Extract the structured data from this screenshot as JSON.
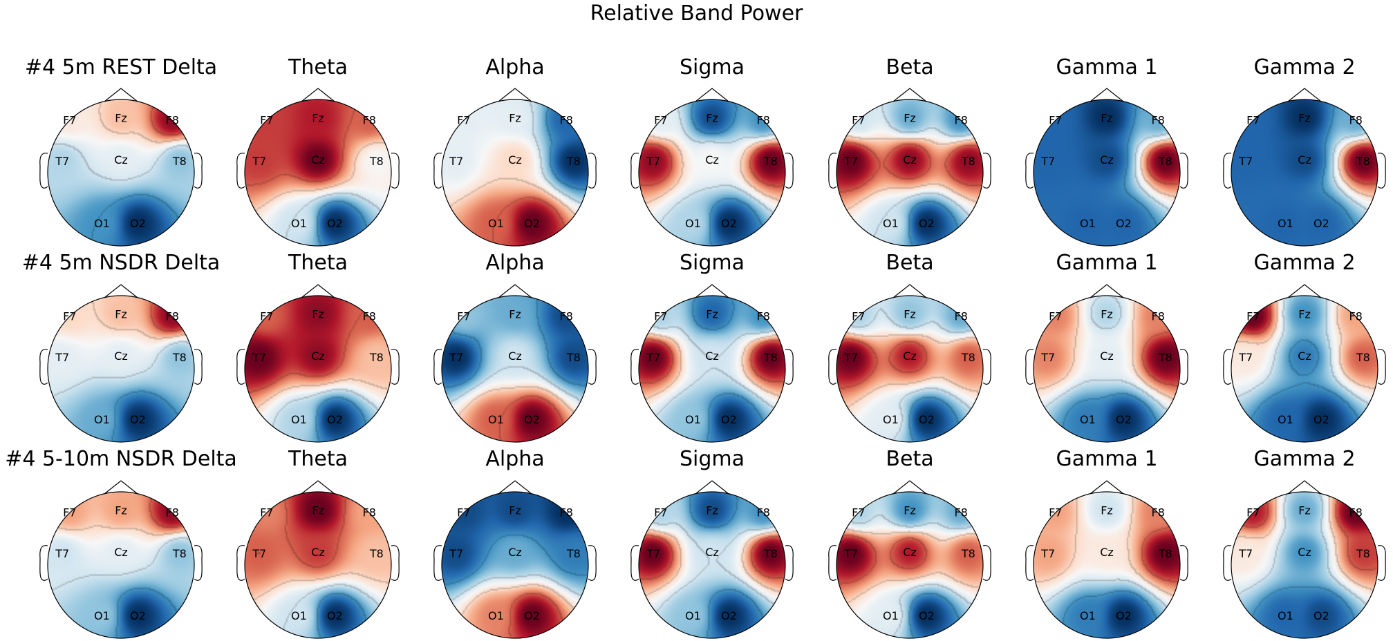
{
  "title": "Relative Band Power",
  "chart_data": {
    "type": "heatmap",
    "kind": "EEG scalp topomap",
    "colormap": "RdBu_r",
    "title": "Relative Band Power",
    "rows": [
      "#4 5m REST",
      "#4 5m NSDR",
      "#4 5-10m NSDR"
    ],
    "bands": [
      "Delta",
      "Theta",
      "Alpha",
      "Sigma",
      "Beta",
      "Gamma 1",
      "Gamma 2"
    ],
    "channels": [
      "F7",
      "Fz",
      "F8",
      "T7",
      "Cz",
      "T8",
      "O1",
      "O2"
    ],
    "value_scale": "relative within each map, -1 (blue) to +1 (red)",
    "maps": [
      [
        [
          0.1,
          0.3,
          0.9,
          -0.3,
          -0.1,
          -0.4,
          -0.6,
          -1.0
        ],
        [
          0.7,
          0.8,
          0.6,
          0.7,
          1.0,
          0.0,
          -0.2,
          -1.0
        ],
        [
          -0.1,
          -0.1,
          -0.8,
          -0.1,
          0.2,
          -1.0,
          0.6,
          1.0
        ],
        [
          -0.1,
          -0.9,
          -0.6,
          0.9,
          0.0,
          1.0,
          -0.3,
          -1.0
        ],
        [
          -0.2,
          -0.5,
          -0.6,
          1.0,
          0.9,
          0.9,
          -0.2,
          -1.0
        ],
        [
          -0.8,
          -1.0,
          -0.5,
          -0.8,
          -0.9,
          1.0,
          -0.8,
          -0.8
        ],
        [
          -0.8,
          -1.0,
          -0.5,
          -0.8,
          -0.9,
          1.0,
          -0.8,
          -0.8
        ]
      ],
      [
        [
          0.2,
          0.3,
          0.9,
          -0.1,
          -0.1,
          -0.4,
          -0.5,
          -1.0
        ],
        [
          0.6,
          0.9,
          0.6,
          1.0,
          0.9,
          0.3,
          -0.3,
          -1.0
        ],
        [
          -0.4,
          -0.5,
          -0.9,
          -1.0,
          -0.2,
          -0.9,
          0.6,
          1.0
        ],
        [
          -0.3,
          -0.8,
          -0.6,
          1.0,
          -0.2,
          1.0,
          -0.4,
          -1.0
        ],
        [
          -0.3,
          -0.4,
          -0.5,
          1.0,
          0.8,
          0.6,
          -0.1,
          -1.0
        ],
        [
          0.5,
          -0.3,
          0.5,
          0.5,
          -0.1,
          1.0,
          -0.7,
          -1.0
        ],
        [
          1.0,
          -0.6,
          0.4,
          0.1,
          -0.7,
          0.6,
          -0.8,
          -1.0
        ]
      ],
      [
        [
          0.4,
          0.4,
          0.9,
          -0.2,
          -0.1,
          -0.4,
          -0.4,
          -1.0
        ],
        [
          0.5,
          1.0,
          0.4,
          0.6,
          0.7,
          0.3,
          -0.2,
          -1.0
        ],
        [
          -0.9,
          -0.9,
          -1.0,
          -0.9,
          -0.5,
          -0.7,
          0.5,
          1.0
        ],
        [
          -0.3,
          -0.9,
          -0.6,
          1.0,
          -0.2,
          1.0,
          -0.4,
          -1.0
        ],
        [
          -0.3,
          -0.6,
          -0.5,
          1.0,
          0.8,
          0.6,
          -0.1,
          -1.0
        ],
        [
          0.4,
          -0.2,
          0.5,
          0.4,
          0.1,
          1.0,
          -0.7,
          -1.0
        ],
        [
          0.8,
          -0.5,
          1.0,
          0.1,
          -0.6,
          0.7,
          -0.8,
          -0.9
        ]
      ]
    ]
  }
}
